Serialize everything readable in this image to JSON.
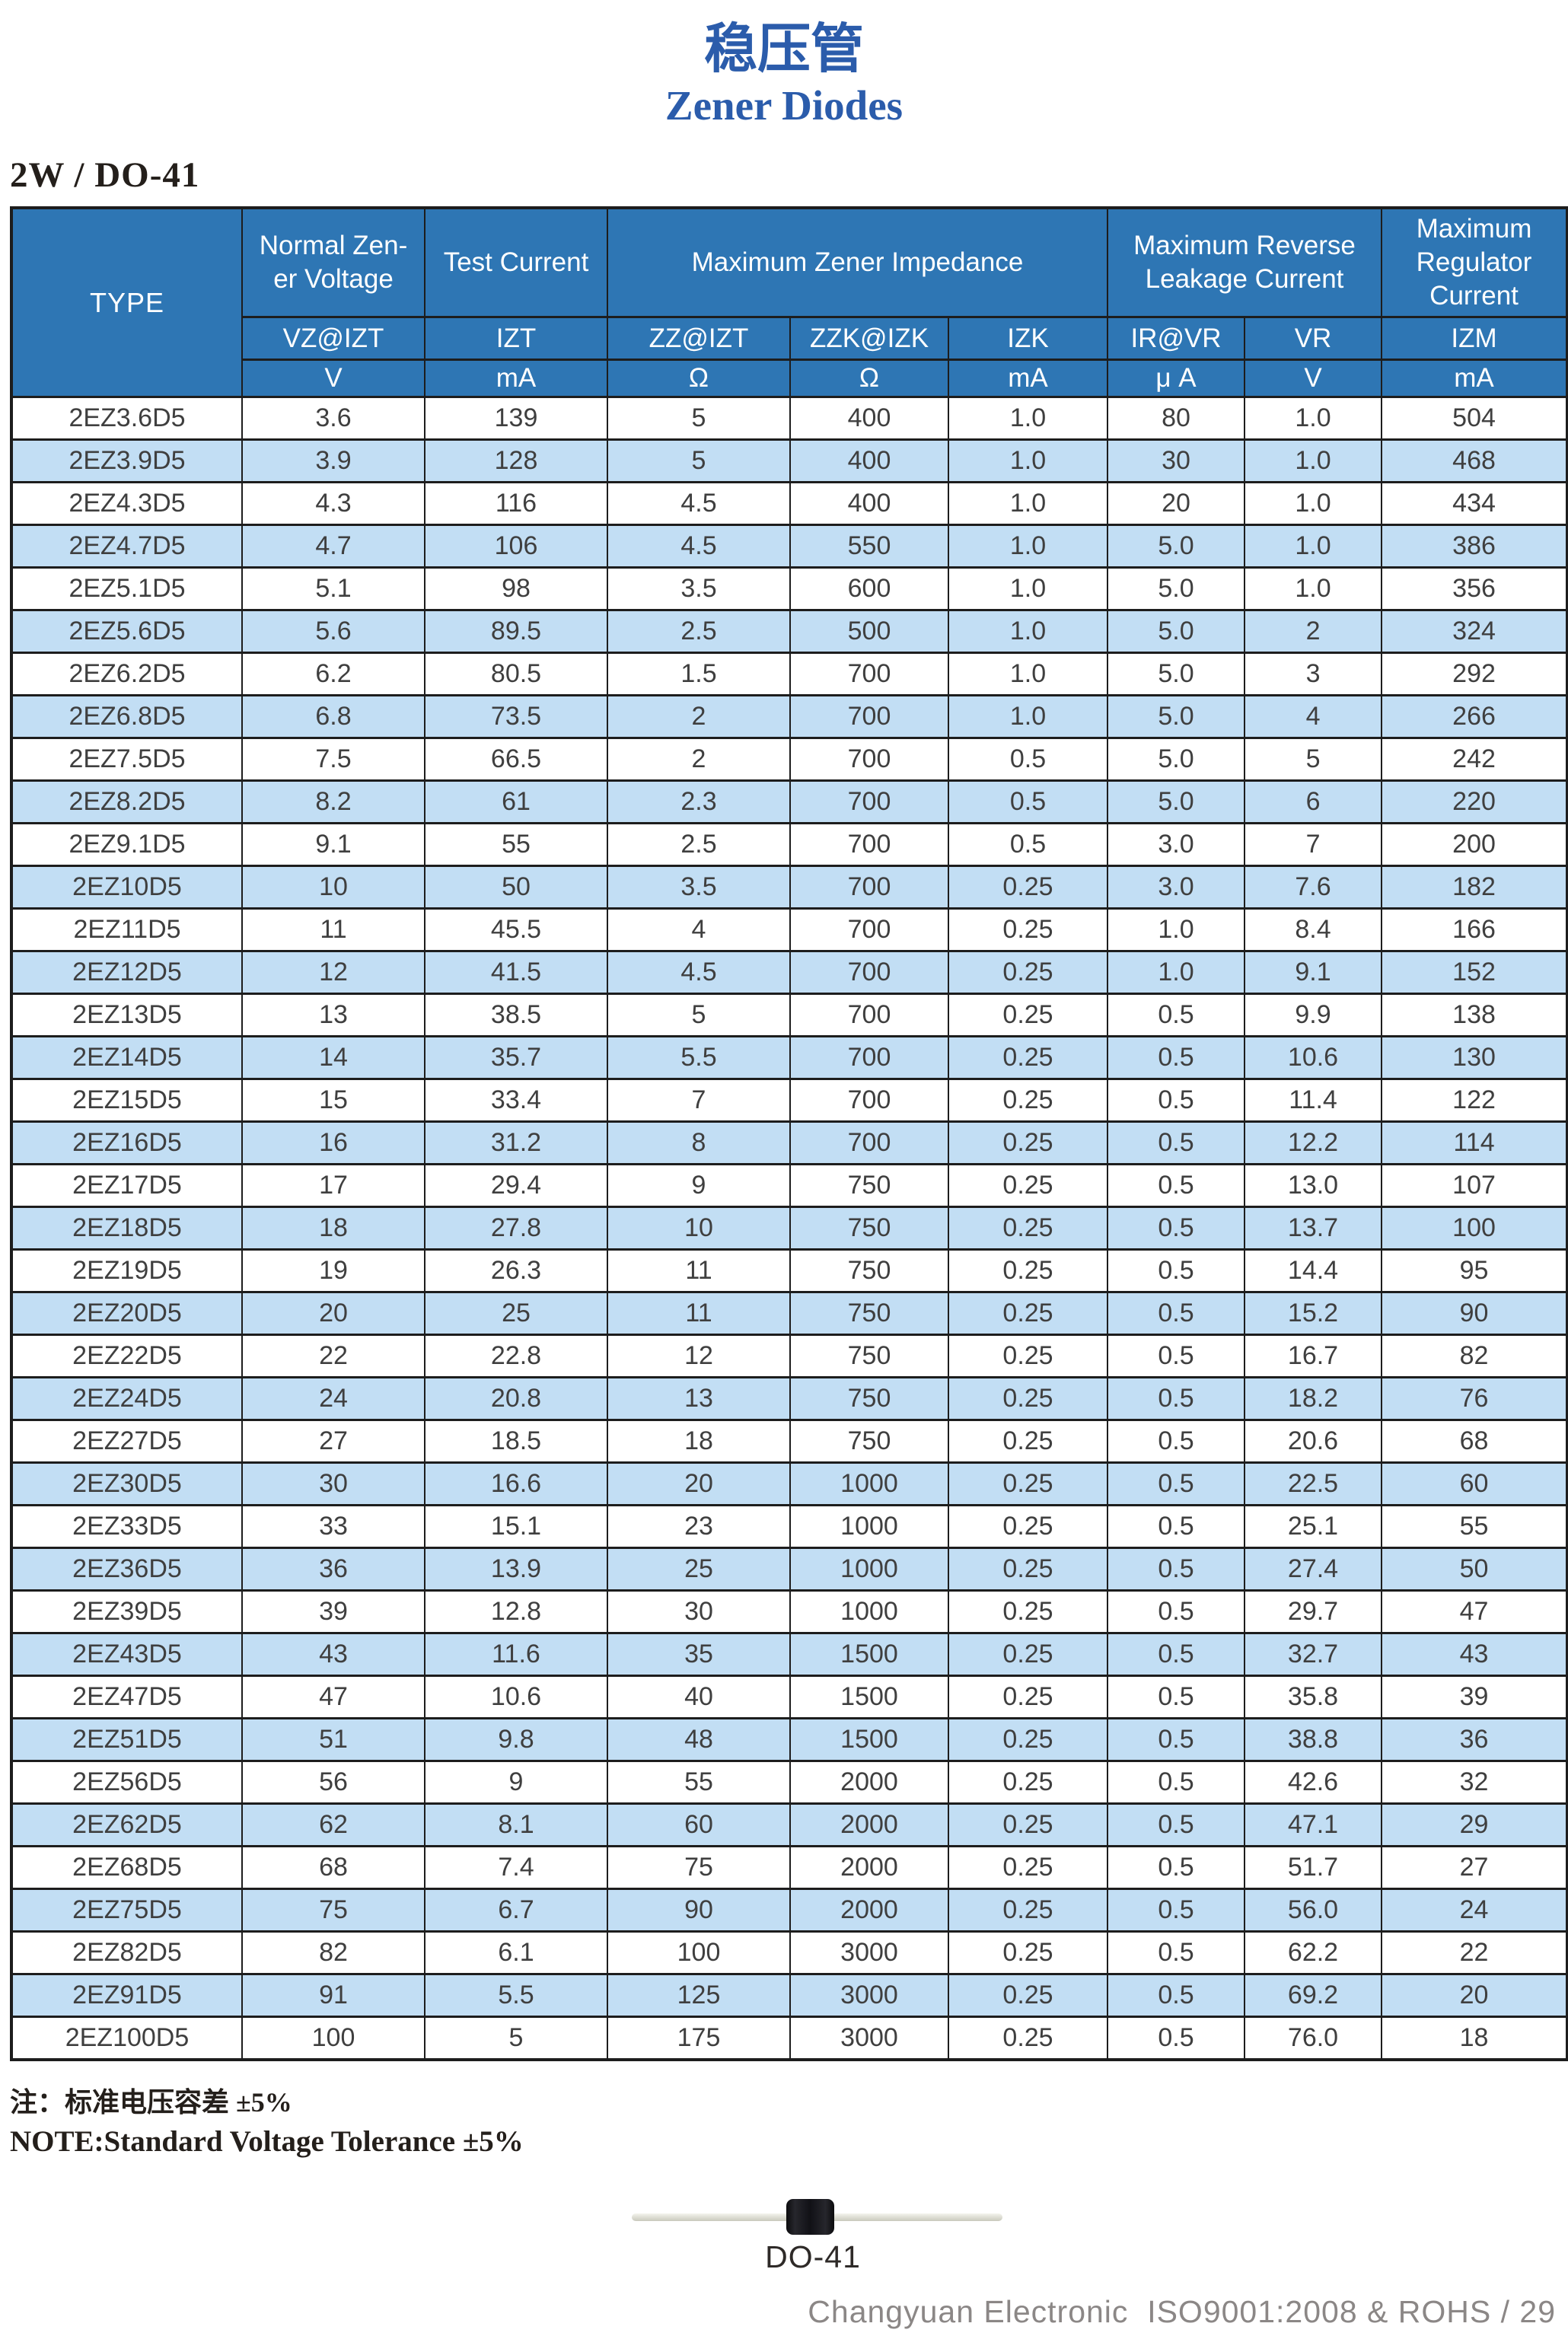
{
  "page": {
    "title_zh": "稳压管",
    "title_en": "Zener Diodes",
    "section_heading": "2W / DO-41",
    "note_zh": "注：标准电压容差 ±5%",
    "note_en": "NOTE:Standard Voltage Tolerance ±5%",
    "package_label": "DO-41",
    "footer": "Changyuan Electronic  ISO9001:2008 & ROHS / 29"
  },
  "colors": {
    "header_blue": "#2e76b4",
    "row_alt_blue": "#c2def4",
    "title_blue": "#2b5cab",
    "border_dark": "#1d1d1d",
    "footer_gray": "#8b8786"
  },
  "table": {
    "type_header": "TYPE",
    "groups": [
      {
        "label": "Normal Zen-\ner Voltage",
        "span": 1
      },
      {
        "label": "Test Current",
        "span": 1
      },
      {
        "label": "Maximum Zener Impedance",
        "span": 3
      },
      {
        "label": "Maximum Reverse\nLeakage Current",
        "span": 2
      },
      {
        "label": "Maximum\nRegulator\nCurrent",
        "span": 1
      }
    ],
    "subheaders": [
      "VZ@IZT",
      "IZT",
      "ZZ@IZT",
      "ZZK@IZK",
      "IZK",
      "IR@VR",
      "VR",
      "IZM"
    ],
    "units": [
      "V",
      "mA",
      "Ω",
      "Ω",
      "mA",
      "μ A",
      "V",
      "mA"
    ],
    "rows": [
      [
        "2EZ3.6D5",
        "3.6",
        "139",
        "5",
        "400",
        "1.0",
        "80",
        "1.0",
        "504"
      ],
      [
        "2EZ3.9D5",
        "3.9",
        "128",
        "5",
        "400",
        "1.0",
        "30",
        "1.0",
        "468"
      ],
      [
        "2EZ4.3D5",
        "4.3",
        "116",
        "4.5",
        "400",
        "1.0",
        "20",
        "1.0",
        "434"
      ],
      [
        "2EZ4.7D5",
        "4.7",
        "106",
        "4.5",
        "550",
        "1.0",
        "5.0",
        "1.0",
        "386"
      ],
      [
        "2EZ5.1D5",
        "5.1",
        "98",
        "3.5",
        "600",
        "1.0",
        "5.0",
        "1.0",
        "356"
      ],
      [
        "2EZ5.6D5",
        "5.6",
        "89.5",
        "2.5",
        "500",
        "1.0",
        "5.0",
        "2",
        "324"
      ],
      [
        "2EZ6.2D5",
        "6.2",
        "80.5",
        "1.5",
        "700",
        "1.0",
        "5.0",
        "3",
        "292"
      ],
      [
        "2EZ6.8D5",
        "6.8",
        "73.5",
        "2",
        "700",
        "1.0",
        "5.0",
        "4",
        "266"
      ],
      [
        "2EZ7.5D5",
        "7.5",
        "66.5",
        "2",
        "700",
        "0.5",
        "5.0",
        "5",
        "242"
      ],
      [
        "2EZ8.2D5",
        "8.2",
        "61",
        "2.3",
        "700",
        "0.5",
        "5.0",
        "6",
        "220"
      ],
      [
        "2EZ9.1D5",
        "9.1",
        "55",
        "2.5",
        "700",
        "0.5",
        "3.0",
        "7",
        "200"
      ],
      [
        "2EZ10D5",
        "10",
        "50",
        "3.5",
        "700",
        "0.25",
        "3.0",
        "7.6",
        "182"
      ],
      [
        "2EZ11D5",
        "11",
        "45.5",
        "4",
        "700",
        "0.25",
        "1.0",
        "8.4",
        "166"
      ],
      [
        "2EZ12D5",
        "12",
        "41.5",
        "4.5",
        "700",
        "0.25",
        "1.0",
        "9.1",
        "152"
      ],
      [
        "2EZ13D5",
        "13",
        "38.5",
        "5",
        "700",
        "0.25",
        "0.5",
        "9.9",
        "138"
      ],
      [
        "2EZ14D5",
        "14",
        "35.7",
        "5.5",
        "700",
        "0.25",
        "0.5",
        "10.6",
        "130"
      ],
      [
        "2EZ15D5",
        "15",
        "33.4",
        "7",
        "700",
        "0.25",
        "0.5",
        "11.4",
        "122"
      ],
      [
        "2EZ16D5",
        "16",
        "31.2",
        "8",
        "700",
        "0.25",
        "0.5",
        "12.2",
        "114"
      ],
      [
        "2EZ17D5",
        "17",
        "29.4",
        "9",
        "750",
        "0.25",
        "0.5",
        "13.0",
        "107"
      ],
      [
        "2EZ18D5",
        "18",
        "27.8",
        "10",
        "750",
        "0.25",
        "0.5",
        "13.7",
        "100"
      ],
      [
        "2EZ19D5",
        "19",
        "26.3",
        "11",
        "750",
        "0.25",
        "0.5",
        "14.4",
        "95"
      ],
      [
        "2EZ20D5",
        "20",
        "25",
        "11",
        "750",
        "0.25",
        "0.5",
        "15.2",
        "90"
      ],
      [
        "2EZ22D5",
        "22",
        "22.8",
        "12",
        "750",
        "0.25",
        "0.5",
        "16.7",
        "82"
      ],
      [
        "2EZ24D5",
        "24",
        "20.8",
        "13",
        "750",
        "0.25",
        "0.5",
        "18.2",
        "76"
      ],
      [
        "2EZ27D5",
        "27",
        "18.5",
        "18",
        "750",
        "0.25",
        "0.5",
        "20.6",
        "68"
      ],
      [
        "2EZ30D5",
        "30",
        "16.6",
        "20",
        "1000",
        "0.25",
        "0.5",
        "22.5",
        "60"
      ],
      [
        "2EZ33D5",
        "33",
        "15.1",
        "23",
        "1000",
        "0.25",
        "0.5",
        "25.1",
        "55"
      ],
      [
        "2EZ36D5",
        "36",
        "13.9",
        "25",
        "1000",
        "0.25",
        "0.5",
        "27.4",
        "50"
      ],
      [
        "2EZ39D5",
        "39",
        "12.8",
        "30",
        "1000",
        "0.25",
        "0.5",
        "29.7",
        "47"
      ],
      [
        "2EZ43D5",
        "43",
        "11.6",
        "35",
        "1500",
        "0.25",
        "0.5",
        "32.7",
        "43"
      ],
      [
        "2EZ47D5",
        "47",
        "10.6",
        "40",
        "1500",
        "0.25",
        "0.5",
        "35.8",
        "39"
      ],
      [
        "2EZ51D5",
        "51",
        "9.8",
        "48",
        "1500",
        "0.25",
        "0.5",
        "38.8",
        "36"
      ],
      [
        "2EZ56D5",
        "56",
        "9",
        "55",
        "2000",
        "0.25",
        "0.5",
        "42.6",
        "32"
      ],
      [
        "2EZ62D5",
        "62",
        "8.1",
        "60",
        "2000",
        "0.25",
        "0.5",
        "47.1",
        "29"
      ],
      [
        "2EZ68D5",
        "68",
        "7.4",
        "75",
        "2000",
        "0.25",
        "0.5",
        "51.7",
        "27"
      ],
      [
        "2EZ75D5",
        "75",
        "6.7",
        "90",
        "2000",
        "0.25",
        "0.5",
        "56.0",
        "24"
      ],
      [
        "2EZ82D5",
        "82",
        "6.1",
        "100",
        "3000",
        "0.25",
        "0.5",
        "62.2",
        "22"
      ],
      [
        "2EZ91D5",
        "91",
        "5.5",
        "125",
        "3000",
        "0.25",
        "0.5",
        "69.2",
        "20"
      ],
      [
        "2EZ100D5",
        "100",
        "5",
        "175",
        "3000",
        "0.25",
        "0.5",
        "76.0",
        "18"
      ]
    ]
  }
}
